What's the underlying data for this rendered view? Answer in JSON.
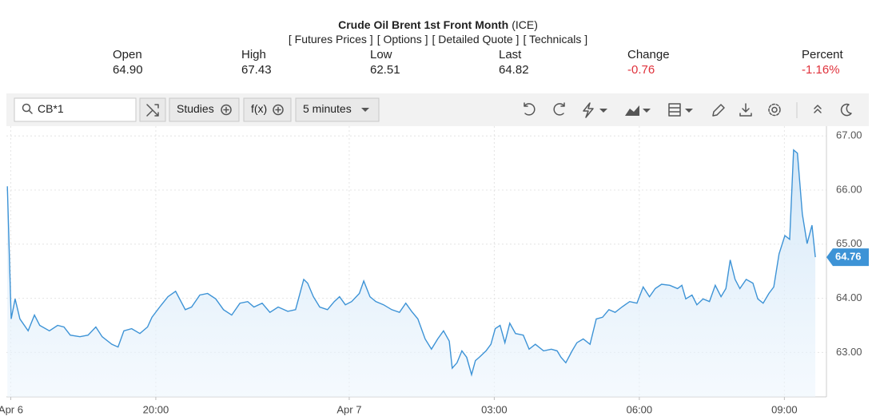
{
  "header": {
    "title": "Crude Oil Brent 1st Front Month",
    "exchange": "(ICE)",
    "links": [
      "[ Futures Prices ]",
      "[ Options ]",
      "[ Detailed Quote ]",
      "[ Technicals ]"
    ],
    "quote": [
      {
        "label": "Open",
        "value": "64.90",
        "color": "#222222"
      },
      {
        "label": "High",
        "value": "67.43",
        "color": "#222222"
      },
      {
        "label": "Low",
        "value": "62.51",
        "color": "#222222"
      },
      {
        "label": "Last",
        "value": "64.82",
        "color": "#222222"
      },
      {
        "label": "Change",
        "value": "-0.76",
        "color": "#e0323c"
      },
      {
        "label": "Percent",
        "value": "-1.16%",
        "color": "#e0323c"
      }
    ]
  },
  "toolbar": {
    "symbol": "CB*1",
    "studies": "Studies",
    "function": "f(x)",
    "interval": "5 minutes"
  },
  "chart_data": {
    "type": "line",
    "grid": true,
    "last_value_tag": true,
    "xlim": [
      16.91,
      33.87
    ],
    "ylim": [
      62.18,
      67.18
    ],
    "xticks": [
      {
        "value": 17,
        "label": "Apr 6"
      },
      {
        "value": 20,
        "label": "20:00"
      },
      {
        "value": 24,
        "label": "Apr 7"
      },
      {
        "value": 27,
        "label": "03:00"
      },
      {
        "value": 30,
        "label": "06:00"
      },
      {
        "value": 33,
        "label": "09:00"
      }
    ],
    "yticks": [
      {
        "value": 63,
        "label": "63.00"
      },
      {
        "value": 64,
        "label": "64.00"
      },
      {
        "value": 65,
        "label": "65.00"
      },
      {
        "value": 66,
        "label": "66.00"
      },
      {
        "value": 67,
        "label": "67.00"
      }
    ],
    "series": [
      {
        "color": "#3d93d6",
        "x": [
          16.93,
          17.01,
          17.09,
          17.19,
          17.36,
          17.49,
          17.6,
          17.8,
          17.97,
          18.1,
          18.23,
          18.43,
          18.6,
          18.76,
          18.89,
          19.09,
          19.22,
          19.34,
          19.5,
          19.67,
          19.83,
          19.92,
          20.08,
          20.25,
          20.41,
          20.61,
          20.74,
          20.91,
          21.07,
          21.24,
          21.4,
          21.57,
          21.74,
          21.9,
          22.03,
          22.2,
          22.36,
          22.53,
          22.73,
          22.89,
          23.06,
          23.14,
          23.26,
          23.39,
          23.55,
          23.69,
          23.8,
          23.92,
          24.05,
          24.21,
          24.3,
          24.43,
          24.55,
          24.71,
          24.88,
          25.04,
          25.17,
          25.29,
          25.42,
          25.57,
          25.7,
          25.83,
          25.95,
          26.07,
          26.13,
          26.23,
          26.33,
          26.43,
          26.53,
          26.61,
          26.69,
          26.83,
          26.93,
          27.02,
          27.12,
          27.22,
          27.32,
          27.44,
          27.6,
          27.72,
          27.85,
          28.02,
          28.18,
          28.3,
          28.38,
          28.48,
          28.61,
          28.71,
          28.84,
          28.98,
          29.11,
          29.24,
          29.37,
          29.5,
          29.64,
          29.8,
          29.95,
          30.08,
          30.21,
          30.33,
          30.46,
          30.63,
          30.79,
          30.88,
          30.96,
          31.09,
          31.19,
          31.32,
          31.45,
          31.57,
          31.69,
          31.79,
          31.88,
          31.98,
          32.08,
          32.21,
          32.35,
          32.45,
          32.56,
          32.68,
          32.78,
          32.89,
          33.01,
          33.11,
          33.19,
          33.27,
          33.37,
          33.47,
          33.57,
          33.64
        ],
        "values": [
          66.07,
          63.62,
          63.99,
          63.62,
          63.4,
          63.69,
          63.5,
          63.4,
          63.5,
          63.47,
          63.32,
          63.29,
          63.32,
          63.47,
          63.29,
          63.15,
          63.1,
          63.4,
          63.44,
          63.35,
          63.47,
          63.65,
          63.84,
          64.03,
          64.13,
          63.79,
          63.84,
          64.06,
          64.09,
          63.99,
          63.79,
          63.69,
          63.91,
          63.94,
          63.84,
          63.91,
          63.74,
          63.84,
          63.76,
          63.79,
          64.35,
          64.28,
          64.03,
          63.84,
          63.79,
          63.94,
          64.03,
          63.88,
          63.94,
          64.09,
          64.32,
          64.03,
          63.94,
          63.88,
          63.79,
          63.74,
          63.91,
          63.76,
          63.62,
          63.25,
          63.06,
          63.25,
          63.4,
          63.21,
          62.71,
          62.81,
          63.03,
          62.91,
          62.59,
          62.85,
          62.91,
          63.03,
          63.15,
          63.44,
          63.5,
          63.18,
          63.54,
          63.35,
          63.32,
          63.06,
          63.15,
          63.03,
          63.06,
          63.03,
          62.91,
          62.81,
          63.03,
          63.18,
          63.25,
          63.15,
          63.62,
          63.65,
          63.79,
          63.74,
          63.84,
          63.94,
          63.91,
          64.21,
          64.03,
          64.18,
          64.26,
          64.24,
          64.18,
          64.24,
          63.99,
          64.06,
          63.88,
          63.99,
          63.94,
          64.24,
          64.03,
          64.18,
          64.71,
          64.35,
          64.18,
          64.35,
          64.28,
          63.99,
          63.91,
          64.09,
          64.21,
          64.82,
          65.16,
          65.09,
          66.74,
          66.68,
          65.56,
          65.01,
          65.35,
          64.76
        ]
      }
    ]
  }
}
